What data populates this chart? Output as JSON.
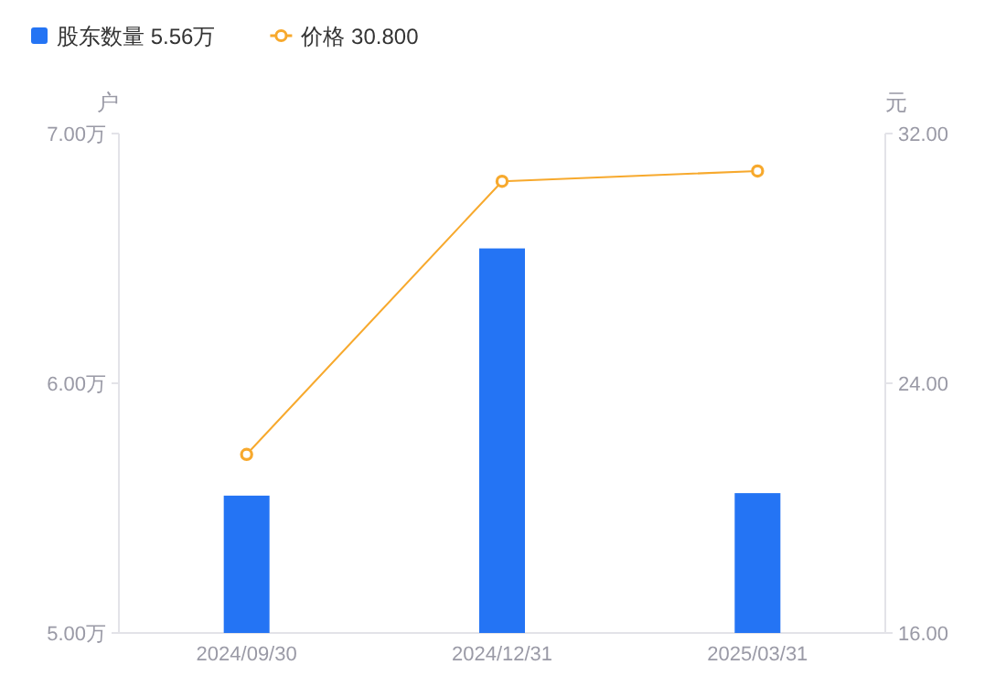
{
  "chart_data": {
    "type": "bar",
    "categories": [
      "2024/09/30",
      "2024/12/31",
      "2025/03/31"
    ],
    "series": [
      {
        "name": "股东数量  5.56万",
        "color": "#2474f4",
        "values": [
          5.55,
          6.54,
          5.56
        ]
      },
      {
        "name": "价格  30.800",
        "type": "line",
        "axis": "y2",
        "color": "#f7a92d",
        "values": [
          21.72,
          30.47,
          30.8
        ],
        "marker": "circle",
        "line_style": "solid"
      }
    ],
    "ylabel": "户",
    "y2label": "元",
    "ylim": [
      5,
      7
    ],
    "yticks": [
      {
        "value": 5,
        "label": "5.00万"
      },
      {
        "value": 6,
        "label": "6.00万"
      },
      {
        "value": 7,
        "label": "7.00万"
      }
    ],
    "y2lim": [
      16,
      32
    ],
    "y2ticks": [
      {
        "value": 16,
        "label": "16.00"
      },
      {
        "value": 24,
        "label": "24.00"
      },
      {
        "value": 32,
        "label": "32.00"
      }
    ],
    "grid": false,
    "legend": "top left"
  }
}
